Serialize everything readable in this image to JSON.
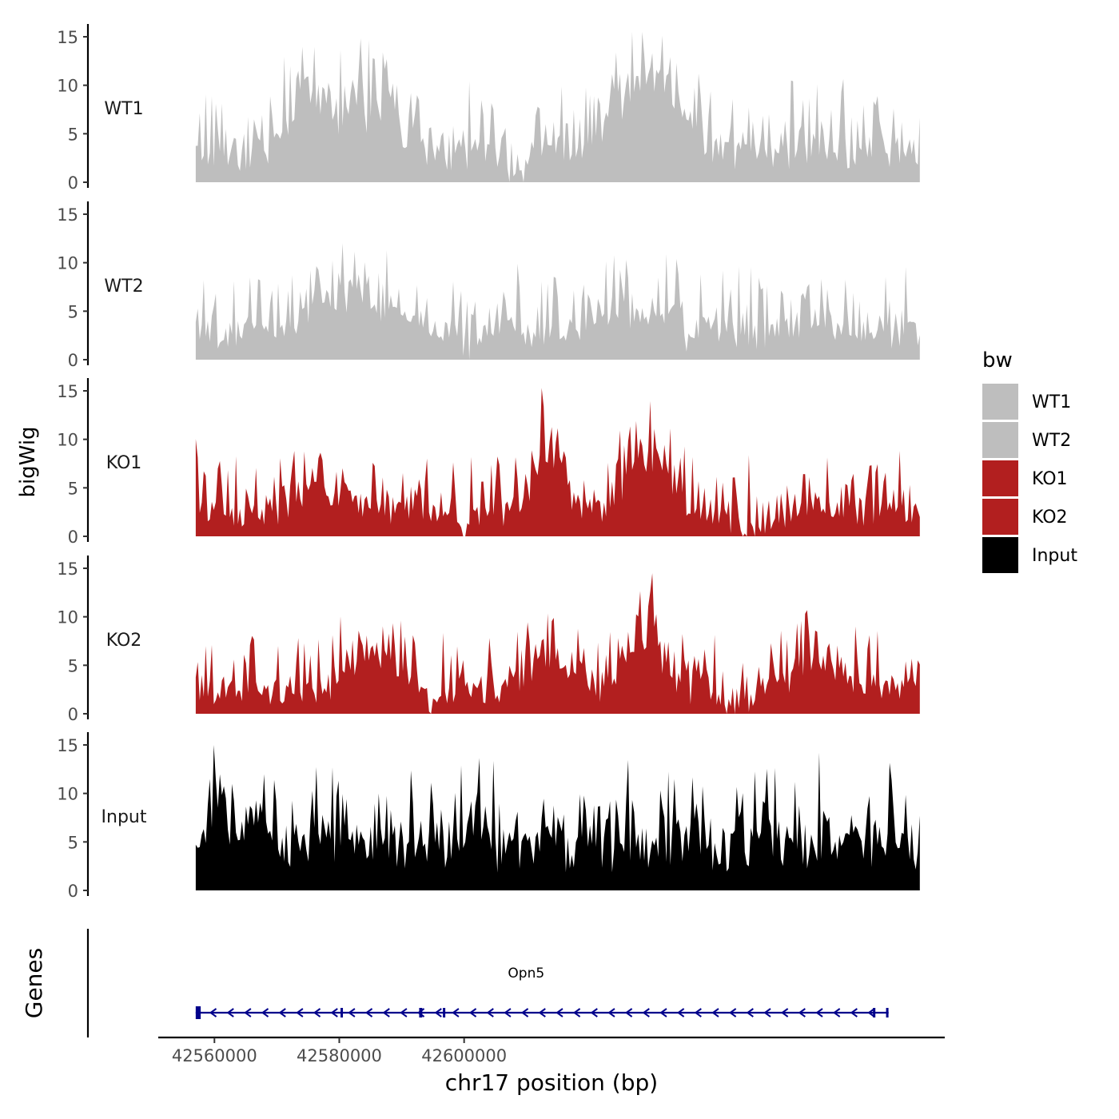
{
  "chart_data": {
    "type": "area",
    "chromosome": "chr17",
    "ylabel": "bigWig",
    "xlabel": "chr17 position (bp)",
    "genes_label": "Genes",
    "x_range": [
      42557000,
      42673000
    ],
    "x_axis_limits": [
      42551000,
      42677000
    ],
    "x_ticks": [
      42560000,
      42580000,
      42600000
    ],
    "x_tick_labels": [
      "42560000",
      "42580000",
      "42600000"
    ],
    "ylim": [
      0,
      16
    ],
    "y_ticks": [
      0,
      5,
      10,
      15
    ],
    "y_tick_labels": [
      "0",
      "5",
      "10",
      "15"
    ],
    "legend": {
      "title": "bw",
      "position": "right",
      "entries": [
        {
          "label": "WT1",
          "color": "#bebebe"
        },
        {
          "label": "WT2",
          "color": "#bebebe"
        },
        {
          "label": "KO1",
          "color": "#b21f1f"
        },
        {
          "label": "KO2",
          "color": "#b21f1f"
        },
        {
          "label": "Input",
          "color": "#000000"
        }
      ]
    },
    "series": [
      {
        "name": "WT1",
        "color": "#bebebe",
        "seed": 11,
        "base": 3.2,
        "noise": 3.4,
        "peak": 15.5,
        "bumps": [
          [
            0.17,
            0.05,
            6.5
          ],
          [
            0.25,
            0.04,
            5.0
          ],
          [
            0.61,
            0.05,
            6.0
          ],
          [
            0.65,
            0.04,
            4.0
          ],
          [
            0.44,
            0.015,
            -3.2
          ]
        ]
      },
      {
        "name": "WT2",
        "color": "#bebebe",
        "seed": 23,
        "base": 2.8,
        "noise": 3.0,
        "peak": 12.0,
        "bumps": [
          [
            0.18,
            0.04,
            3.5
          ],
          [
            0.24,
            0.05,
            3.0
          ],
          [
            0.58,
            0.04,
            3.0
          ],
          [
            0.66,
            0.04,
            2.5
          ],
          [
            0.38,
            0.012,
            -3.0
          ],
          [
            0.68,
            0.008,
            -3.0
          ]
        ]
      },
      {
        "name": "KO1",
        "color": "#b21f1f",
        "seed": 37,
        "base": 2.6,
        "noise": 3.2,
        "peak": 15.3,
        "bumps": [
          [
            0.49,
            0.025,
            7.5
          ],
          [
            0.62,
            0.04,
            6.0
          ],
          [
            0.18,
            0.04,
            2.5
          ],
          [
            0.37,
            0.012,
            -2.5
          ],
          [
            0.77,
            0.03,
            -2.0
          ]
        ]
      },
      {
        "name": "KO2",
        "color": "#b21f1f",
        "seed": 53,
        "base": 2.6,
        "noise": 3.0,
        "peak": 14.5,
        "bumps": [
          [
            0.24,
            0.04,
            4.5
          ],
          [
            0.49,
            0.04,
            4.0
          ],
          [
            0.62,
            0.03,
            6.5
          ],
          [
            0.86,
            0.04,
            3.5
          ],
          [
            0.75,
            0.035,
            -2.5
          ],
          [
            0.33,
            0.02,
            -1.5
          ]
        ]
      },
      {
        "name": "Input",
        "color": "#000000",
        "seed": 71,
        "base": 4.6,
        "noise": 3.4,
        "peak": 15.0,
        "bumps": [
          [
            0.03,
            0.015,
            4.5
          ]
        ]
      }
    ],
    "genes": [
      {
        "name": "Opn5",
        "start": 42557000,
        "end": 42668000,
        "strand": "-",
        "color": "#00008b",
        "exons": [
          [
            42557000,
            42557800
          ],
          [
            42580200,
            42580500
          ],
          [
            42592800,
            42593300
          ],
          [
            42596600,
            42596900
          ],
          [
            42665500,
            42665700
          ],
          [
            42667600,
            42667800
          ]
        ]
      }
    ]
  }
}
